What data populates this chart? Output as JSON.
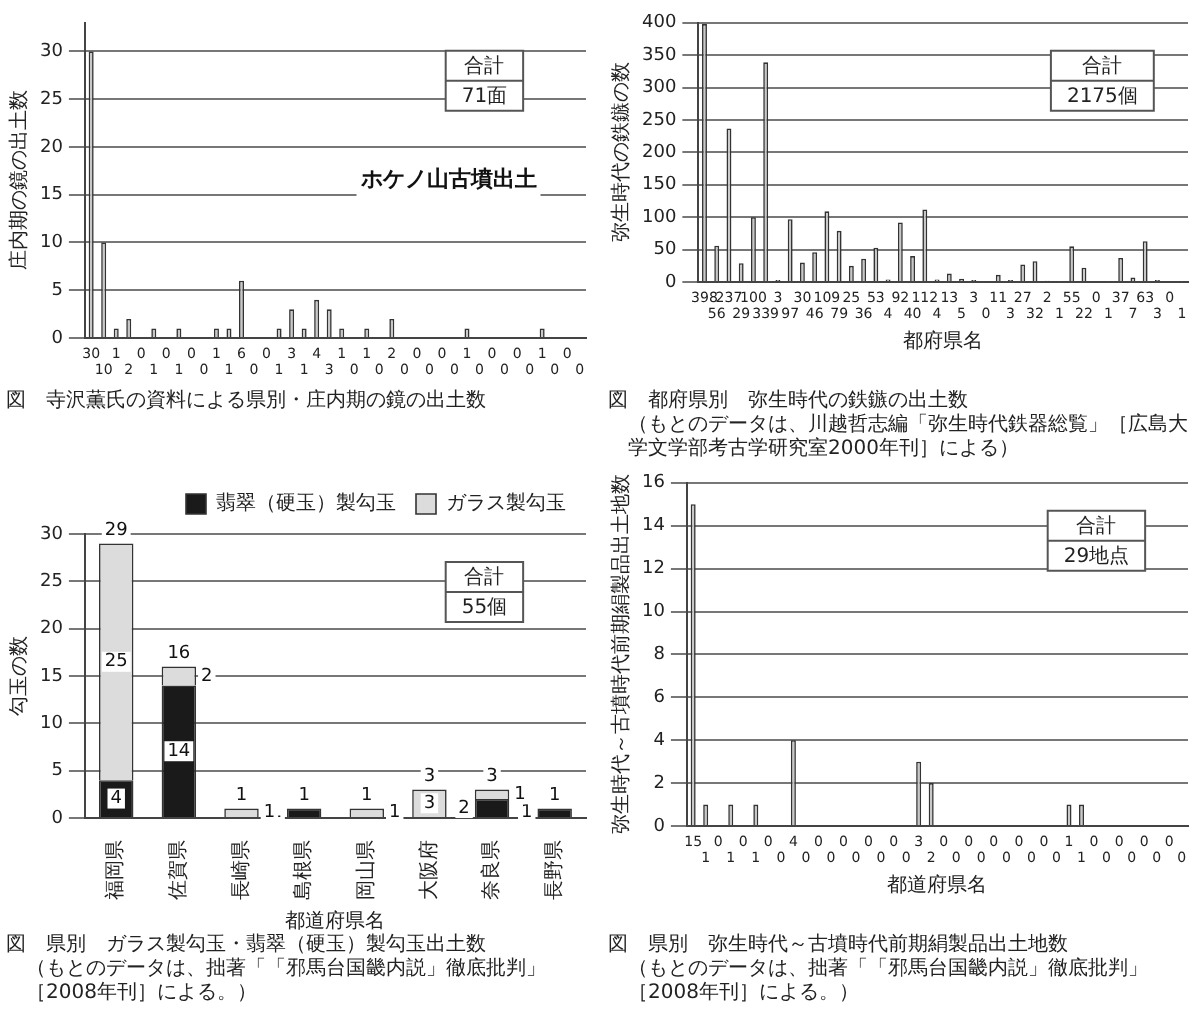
{
  "chart_data": [
    {
      "type": "bar",
      "title": "図　寺沢薫氏の資料による県別・庄内期の鏡の出土数",
      "ylabel": "庄内期の鏡の出土数",
      "categories": [
        null,
        null,
        null,
        null,
        null,
        null,
        null,
        null,
        null,
        null,
        null,
        null,
        null,
        null,
        null,
        null,
        null,
        null,
        null,
        null,
        null,
        null,
        null,
        null,
        null,
        null,
        null,
        null,
        null,
        null,
        null,
        null,
        null,
        null,
        null,
        null,
        null,
        null,
        null,
        null
      ],
      "values": [
        30,
        10,
        1,
        2,
        0,
        1,
        0,
        1,
        0,
        0,
        1,
        1,
        6,
        0,
        0,
        1,
        3,
        1,
        4,
        3,
        1,
        0,
        1,
        0,
        2,
        0,
        0,
        0,
        0,
        0,
        1,
        0,
        0,
        0,
        0,
        0,
        1,
        0,
        0,
        0
      ],
      "color": "#c8c8c8",
      "ylim": [
        0,
        33
      ],
      "yticks": [
        0,
        5,
        10,
        15,
        20,
        25,
        30
      ],
      "grid": "y",
      "data_labels": true,
      "annotations": [
        "合計",
        "71面",
        "ホケノ山古墳出土"
      ]
    },
    {
      "type": "bar",
      "title": "図　都府県別　弥生時代の鉄鏃の出土数",
      "xlabel": "都府県名",
      "ylabel": "弥生時代の鉄鏃の数",
      "categories": [
        null,
        null,
        null,
        null,
        null,
        null,
        null,
        null,
        null,
        null,
        null,
        null,
        null,
        null,
        null,
        null,
        null,
        null,
        null,
        null,
        null,
        null,
        null,
        null,
        null,
        null,
        null,
        null,
        null,
        null,
        null,
        null,
        null,
        null,
        null,
        null,
        null,
        null,
        null,
        null
      ],
      "values": [
        398,
        56,
        237,
        29,
        100,
        339,
        3,
        97,
        30,
        46,
        109,
        79,
        25,
        36,
        53,
        4,
        92,
        40,
        112,
        4,
        13,
        5,
        3,
        0,
        11,
        3,
        27,
        32,
        2,
        1,
        55,
        22,
        0,
        1,
        37,
        7,
        63,
        3,
        0,
        1
      ],
      "color": "#c8c8c8",
      "ylim": [
        0,
        400
      ],
      "yticks": [
        0,
        50,
        100,
        150,
        200,
        250,
        300,
        350,
        400
      ],
      "grid": "y",
      "data_labels": true,
      "annotations": [
        "合計",
        "2175個",
        "（もとのデータは、川越哲志編「弥生時代鉄器総覧」［広島大学文学部考古学研究室2000年刊］による）"
      ]
    },
    {
      "type": "bar",
      "title": "図　県別　ガラス製勾玉・翡翠（硬玉）製勾玉出土数",
      "xlabel": "都道府県名",
      "ylabel": "勾玉の数",
      "categories": [
        "福岡県",
        "佐賀県",
        "長崎県",
        "島根県",
        "岡山県",
        "大阪府",
        "奈良県",
        "長野県"
      ],
      "stacked": true,
      "series": [
        {
          "name": "翡翠（硬玉）製勾玉",
          "color": "#1a1a1a",
          "values": [
            4,
            14,
            null,
            1,
            null,
            null,
            2,
            1
          ]
        },
        {
          "name": "ガラス製勾玉",
          "color": "#dcdcdc",
          "values": [
            25,
            2,
            1,
            null,
            1,
            3,
            1,
            null
          ]
        }
      ],
      "totals": [
        "29",
        "16",
        "1",
        "1",
        "1",
        "3",
        "3",
        "1"
      ],
      "legend": "top right",
      "ylim": [
        0,
        30
      ],
      "yticks": [
        0,
        5,
        10,
        15,
        20,
        25,
        30
      ],
      "grid": "y",
      "data_labels": true,
      "annotations": [
        "合計",
        "55個",
        "（もとのデータは、拙著「「邪馬台国畿内説」徹底批判」［2008年刊］による。）"
      ]
    },
    {
      "type": "bar",
      "title": "図　県別　弥生時代～古墳時代前期絹製品出土地数",
      "xlabel": "都道府県名",
      "ylabel": "弥生時代～古墳時代前期絹製品出土地数",
      "categories": [
        null,
        null,
        null,
        null,
        null,
        null,
        null,
        null,
        null,
        null,
        null,
        null,
        null,
        null,
        null,
        null,
        null,
        null,
        null,
        null,
        null,
        null,
        null,
        null,
        null,
        null,
        null,
        null,
        null,
        null,
        null,
        null,
        null,
        null,
        null,
        null,
        null,
        null,
        null,
        null
      ],
      "values": [
        15,
        1,
        0,
        1,
        0,
        1,
        0,
        0,
        4,
        0,
        0,
        0,
        0,
        0,
        0,
        0,
        0,
        0,
        3,
        2,
        0,
        0,
        0,
        0,
        0,
        0,
        0,
        0,
        0,
        0,
        1,
        1,
        0,
        0,
        0,
        0,
        0,
        0,
        0,
        0
      ],
      "color": "#c8c8c8",
      "ylim": [
        0,
        16
      ],
      "yticks": [
        0,
        2,
        4,
        6,
        8,
        10,
        12,
        14,
        16
      ],
      "grid": "y",
      "data_labels": true,
      "annotations": [
        "合計",
        "29地点",
        "（もとのデータは、拙著「「邪馬台国畿内説」徹底批判」［2008年刊］による。）"
      ]
    }
  ]
}
